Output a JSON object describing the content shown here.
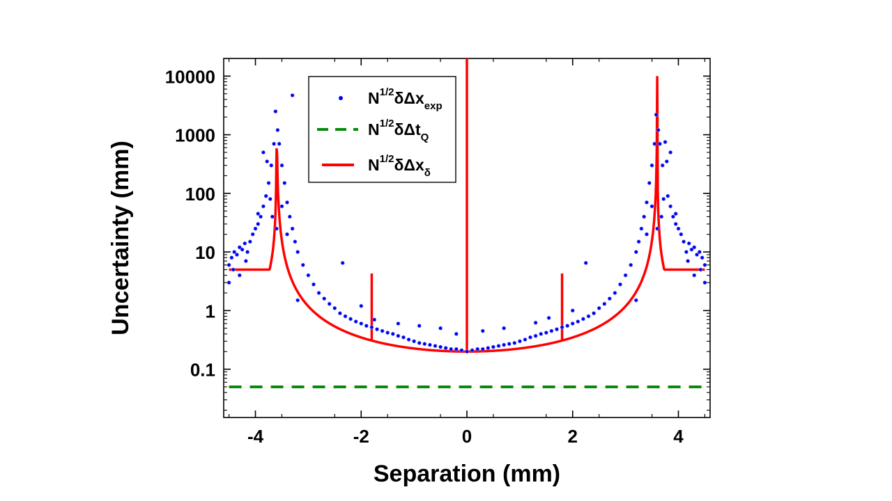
{
  "chart_data": {
    "type": "scatter",
    "xlabel": "Separation (mm)",
    "ylabel": "Uncertainty (mm)",
    "xlim": [
      -4.6,
      4.6
    ],
    "ylim": [
      0.015,
      20000
    ],
    "yscale": "log",
    "x_ticks": [
      -4,
      -2,
      0,
      2,
      4
    ],
    "x_tick_labels": [
      "-4",
      "-2",
      "0",
      "2",
      "4"
    ],
    "y_ticks": [
      0.1,
      1,
      10,
      100,
      1000,
      10000
    ],
    "y_tick_labels": [
      "0.1",
      "1",
      "10",
      "100",
      "1000",
      "10000"
    ],
    "grid": false,
    "legend_position": "top-left",
    "colors": {
      "exp": "#0000ee",
      "tq": "#0a8a0a",
      "delta": "#ff0000"
    },
    "series": [
      {
        "name": "exp",
        "legend": {
          "base": "N",
          "sup": "1/2",
          "mid": "δΔx",
          "sub": "exp"
        },
        "style": "points",
        "points": [
          [
            -4.5,
            6
          ],
          [
            -4.45,
            8
          ],
          [
            -4.4,
            10
          ],
          [
            -4.35,
            9
          ],
          [
            -4.3,
            12
          ],
          [
            -4.25,
            11
          ],
          [
            -4.2,
            14
          ],
          [
            -4.15,
            10
          ],
          [
            -4.1,
            15
          ],
          [
            -4.05,
            20
          ],
          [
            -4.0,
            25
          ],
          [
            -3.95,
            30
          ],
          [
            -3.9,
            40
          ],
          [
            -3.85,
            60
          ],
          [
            -3.8,
            90
          ],
          [
            -3.75,
            150
          ],
          [
            -3.7,
            300
          ],
          [
            -3.65,
            700
          ],
          [
            -3.62,
            2500
          ],
          [
            -3.58,
            1200
          ],
          [
            -3.55,
            700
          ],
          [
            -3.5,
            300
          ],
          [
            -3.45,
            150
          ],
          [
            -3.4,
            70
          ],
          [
            -3.35,
            40
          ],
          [
            -3.3,
            25
          ],
          [
            -3.25,
            15
          ],
          [
            -3.3,
            4700
          ],
          [
            -3.2,
            10
          ],
          [
            -3.1,
            6
          ],
          [
            -3.0,
            4
          ],
          [
            -2.9,
            2.8
          ],
          [
            -2.8,
            2.0
          ],
          [
            -2.7,
            1.6
          ],
          [
            -2.6,
            1.3
          ],
          [
            -2.5,
            1.1
          ],
          [
            -2.4,
            0.9
          ],
          [
            -2.3,
            0.8
          ],
          [
            -2.2,
            0.72
          ],
          [
            -2.1,
            0.65
          ],
          [
            -2.0,
            0.6
          ],
          [
            -1.9,
            0.55
          ],
          [
            -1.8,
            0.52
          ],
          [
            -1.7,
            0.48
          ],
          [
            -1.6,
            0.45
          ],
          [
            -1.5,
            0.42
          ],
          [
            -1.4,
            0.4
          ],
          [
            -1.3,
            0.37
          ],
          [
            -1.2,
            0.35
          ],
          [
            -1.1,
            0.32
          ],
          [
            -1.0,
            0.3
          ],
          [
            -0.9,
            0.28
          ],
          [
            -0.8,
            0.27
          ],
          [
            -0.7,
            0.26
          ],
          [
            -0.6,
            0.25
          ],
          [
            -0.5,
            0.24
          ],
          [
            -0.4,
            0.23
          ],
          [
            -0.3,
            0.22
          ],
          [
            -0.2,
            0.22
          ],
          [
            -0.1,
            0.21
          ],
          [
            0.0,
            0.2
          ],
          [
            0.1,
            0.21
          ],
          [
            0.2,
            0.22
          ],
          [
            0.3,
            0.22
          ],
          [
            0.4,
            0.23
          ],
          [
            0.5,
            0.24
          ],
          [
            0.6,
            0.25
          ],
          [
            0.7,
            0.26
          ],
          [
            0.8,
            0.27
          ],
          [
            0.9,
            0.28
          ],
          [
            1.0,
            0.3
          ],
          [
            1.1,
            0.32
          ],
          [
            1.2,
            0.35
          ],
          [
            1.3,
            0.37
          ],
          [
            1.4,
            0.4
          ],
          [
            1.5,
            0.42
          ],
          [
            1.6,
            0.45
          ],
          [
            1.7,
            0.48
          ],
          [
            1.8,
            0.52
          ],
          [
            1.9,
            0.55
          ],
          [
            2.0,
            0.6
          ],
          [
            2.1,
            0.65
          ],
          [
            2.2,
            0.72
          ],
          [
            2.3,
            0.8
          ],
          [
            2.4,
            0.9
          ],
          [
            2.5,
            1.1
          ],
          [
            2.6,
            1.3
          ],
          [
            2.7,
            1.6
          ],
          [
            2.8,
            2.0
          ],
          [
            2.9,
            2.8
          ],
          [
            3.0,
            4
          ],
          [
            3.1,
            6
          ],
          [
            3.2,
            10
          ],
          [
            3.25,
            15
          ],
          [
            3.3,
            25
          ],
          [
            3.35,
            40
          ],
          [
            3.4,
            70
          ],
          [
            3.45,
            150
          ],
          [
            3.5,
            300
          ],
          [
            3.55,
            700
          ],
          [
            3.58,
            2200
          ],
          [
            3.62,
            1200
          ],
          [
            3.65,
            700
          ],
          [
            3.7,
            300
          ],
          [
            3.75,
            750
          ],
          [
            3.8,
            90
          ],
          [
            3.85,
            60
          ],
          [
            3.9,
            40
          ],
          [
            3.95,
            30
          ],
          [
            4.0,
            25
          ],
          [
            4.05,
            20
          ],
          [
            4.1,
            15
          ],
          [
            4.15,
            10
          ],
          [
            4.2,
            14
          ],
          [
            4.25,
            11
          ],
          [
            4.3,
            12
          ],
          [
            4.35,
            9
          ],
          [
            4.4,
            10
          ],
          [
            4.45,
            8
          ],
          [
            4.5,
            6
          ],
          [
            -4.5,
            3
          ],
          [
            -4.42,
            5
          ],
          [
            -4.3,
            4
          ],
          [
            -4.18,
            7
          ],
          [
            -3.95,
            45
          ],
          [
            -3.85,
            500
          ],
          [
            -3.78,
            350
          ],
          [
            -3.72,
            80
          ],
          [
            -3.68,
            40
          ],
          [
            -3.6,
            25
          ],
          [
            -3.5,
            60
          ],
          [
            -3.4,
            20
          ],
          [
            -3.2,
            1.5
          ],
          [
            -2.35,
            6.5
          ],
          [
            -2.0,
            1.2
          ],
          [
            -1.75,
            0.7
          ],
          [
            -1.3,
            0.6
          ],
          [
            -0.9,
            0.55
          ],
          [
            -0.5,
            0.5
          ],
          [
            -0.2,
            0.4
          ],
          [
            0.3,
            0.45
          ],
          [
            0.7,
            0.5
          ],
          [
            1.3,
            0.62
          ],
          [
            1.55,
            0.75
          ],
          [
            2.0,
            1.0
          ],
          [
            2.25,
            6.5
          ],
          [
            3.2,
            1.5
          ],
          [
            3.4,
            20
          ],
          [
            3.5,
            60
          ],
          [
            3.6,
            25
          ],
          [
            3.68,
            40
          ],
          [
            3.72,
            80
          ],
          [
            3.78,
            350
          ],
          [
            3.85,
            500
          ],
          [
            3.95,
            45
          ],
          [
            4.18,
            7
          ],
          [
            4.3,
            4
          ],
          [
            4.42,
            5
          ],
          [
            4.5,
            3
          ]
        ]
      },
      {
        "name": "tq",
        "legend": {
          "base": "N",
          "sup": "1/2",
          "mid": "δΔt",
          "sub": "Q"
        },
        "style": "dashed",
        "points": [
          [
            -4.5,
            0.05
          ],
          [
            4.5,
            0.05
          ]
        ]
      },
      {
        "name": "delta",
        "legend": {
          "base": "N",
          "sup": "1/2",
          "mid": "δΔx",
          "sub": "δ"
        },
        "style": "line",
        "peak_x": 3.6,
        "peak_value": 10000,
        "floor_value": 0.2,
        "spikes": [
          {
            "x": -1.8,
            "value": 4.3
          },
          {
            "x": 0.0,
            "value": 20000
          },
          {
            "x": 1.8,
            "value": 4.3
          }
        ]
      }
    ]
  }
}
